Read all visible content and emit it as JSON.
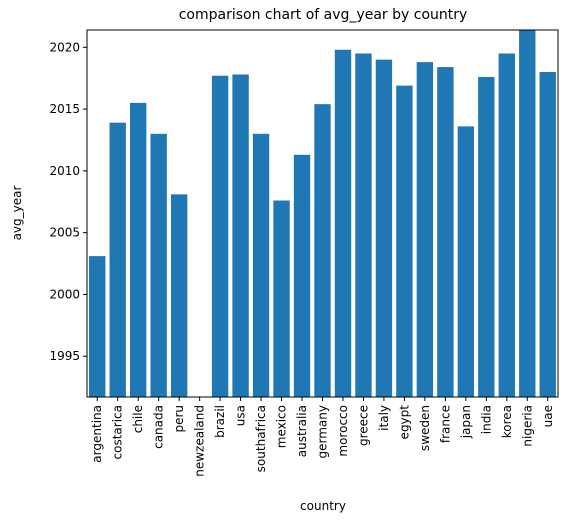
{
  "chart_data": {
    "type": "bar",
    "title": "comparison chart of avg_year by country",
    "xlabel": "country",
    "ylabel": "avg_year",
    "categories": [
      "argentina",
      "costarica",
      "chile",
      "canada",
      "peru",
      "newzealand",
      "brazil",
      "usa",
      "southafrica",
      "mexico",
      "australia",
      "germany",
      "morocco",
      "greece",
      "italy",
      "egypt",
      "sweden",
      "france",
      "japan",
      "india",
      "korea",
      "nigeria",
      "uae"
    ],
    "values": [
      2003.1,
      2013.9,
      2015.5,
      2013.0,
      2008.1,
      null,
      2017.7,
      2017.8,
      2013.0,
      2007.6,
      2011.3,
      2015.4,
      2019.8,
      2019.5,
      2019.0,
      2016.9,
      2018.8,
      2018.4,
      2013.6,
      2017.6,
      2019.5,
      2021.5,
      2018.0
    ],
    "ylim": [
      1991.7,
      2021.4
    ],
    "yticks": [
      1995,
      2000,
      2005,
      2010,
      2015,
      2020
    ],
    "bar_color": "#1f77b4",
    "grid": false,
    "legend": "none"
  }
}
